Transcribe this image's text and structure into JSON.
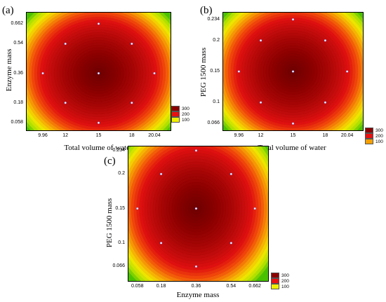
{
  "chart_data": [
    {
      "type": "heatmap",
      "panel_label": "(a)",
      "xlabel": "Total volume of water",
      "ylabel": "Enzyme mass",
      "x_ticks": [
        "9.96",
        "12",
        "15",
        "18",
        "20.04"
      ],
      "x_tick_values": [
        9.96,
        12,
        15,
        18,
        20.04
      ],
      "y_ticks": [
        "0.058",
        "0.18",
        "0.36",
        "0.54",
        "0.662"
      ],
      "y_tick_values": [
        0.058,
        0.18,
        0.36,
        0.54,
        0.662
      ],
      "xlim": [
        8.5,
        21.5
      ],
      "ylim": [
        0.012,
        0.73
      ],
      "design_points": [
        [
          15,
          0.662
        ],
        [
          12,
          0.54
        ],
        [
          18,
          0.54
        ],
        [
          9.96,
          0.36
        ],
        [
          15,
          0.36
        ],
        [
          20.04,
          0.36
        ],
        [
          12,
          0.18
        ],
        [
          18,
          0.18
        ],
        [
          15,
          0.058
        ]
      ],
      "legend": [
        {
          "label": "300",
          "color": "#8b0000"
        },
        {
          "label": "200",
          "color": "#e81010"
        },
        {
          "label": "100",
          "color": "#f0f000"
        }
      ]
    },
    {
      "type": "heatmap",
      "panel_label": "(b)",
      "xlabel": "Total volume of water",
      "ylabel": "PEG 1500 mass",
      "x_ticks": [
        "9.96",
        "12",
        "15",
        "18",
        "20.04"
      ],
      "x_tick_values": [
        9.96,
        12,
        15,
        18,
        20.04
      ],
      "y_ticks": [
        "0.066",
        "0.1",
        "0.15",
        "0.2",
        "0.234"
      ],
      "y_tick_values": [
        0.066,
        0.1,
        0.15,
        0.2,
        0.234
      ],
      "xlim": [
        8.5,
        21.5
      ],
      "ylim": [
        0.055,
        0.245
      ],
      "design_points": [
        [
          15,
          0.234
        ],
        [
          12,
          0.2
        ],
        [
          18,
          0.2
        ],
        [
          9.96,
          0.15
        ],
        [
          15,
          0.15
        ],
        [
          20.04,
          0.15
        ],
        [
          12,
          0.1
        ],
        [
          18,
          0.1
        ],
        [
          15,
          0.066
        ]
      ],
      "legend": [
        {
          "label": "300",
          "color": "#8b0000"
        },
        {
          "label": "200",
          "color": "#e81010"
        },
        {
          "label": "100",
          "color": "#f5a000"
        }
      ]
    },
    {
      "type": "heatmap",
      "panel_label": "(c)",
      "xlabel": "Enzyme mass",
      "ylabel": "PEG 1500 mass",
      "x_ticks": [
        "0.058",
        "0.18",
        "0.36",
        "0.54",
        "0.662"
      ],
      "x_tick_values": [
        0.058,
        0.18,
        0.36,
        0.54,
        0.662
      ],
      "y_ticks": [
        "0.066",
        "0.1",
        "0.15",
        "0.2",
        "0.234"
      ],
      "y_tick_values": [
        0.066,
        0.1,
        0.15,
        0.2,
        0.234
      ],
      "xlim": [
        0.012,
        0.73
      ],
      "ylim": [
        0.045,
        0.24
      ],
      "design_points": [
        [
          0.36,
          0.234
        ],
        [
          0.18,
          0.2
        ],
        [
          0.54,
          0.2
        ],
        [
          0.058,
          0.15
        ],
        [
          0.36,
          0.15
        ],
        [
          0.662,
          0.15
        ],
        [
          0.18,
          0.1
        ],
        [
          0.54,
          0.1
        ],
        [
          0.36,
          0.066
        ]
      ],
      "legend": [
        {
          "label": "300",
          "color": "#8b0000"
        },
        {
          "label": "200",
          "color": "#e81010"
        },
        {
          "label": "100",
          "color": "#f0f000"
        }
      ]
    }
  ]
}
